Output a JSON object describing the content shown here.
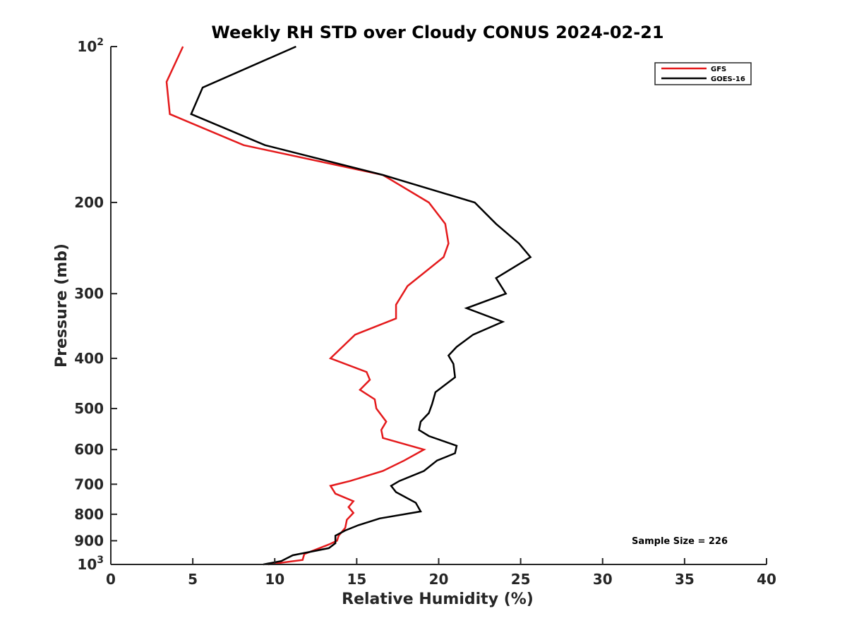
{
  "chart_data": {
    "type": "line",
    "title": "Weekly RH STD over Cloudy CONUS 2024-02-21",
    "xlabel": "Relative Humidity (%)",
    "ylabel": "Pressure (mb)",
    "xlim": [
      0,
      40
    ],
    "ylim": [
      100,
      1000
    ],
    "y_scale": "log",
    "y_reversed": true,
    "grid": false,
    "legend_position": "top-right",
    "x_ticks": [
      0,
      5,
      10,
      15,
      20,
      25,
      30,
      35,
      40
    ],
    "y_ticks": [
      {
        "value": 100,
        "base": "10",
        "exp": "2"
      },
      {
        "value": 200,
        "label": "200"
      },
      {
        "value": 300,
        "label": "300"
      },
      {
        "value": 400,
        "label": "400"
      },
      {
        "value": 500,
        "label": "500"
      },
      {
        "value": 600,
        "label": "600"
      },
      {
        "value": 700,
        "label": "700"
      },
      {
        "value": 800,
        "label": "800"
      },
      {
        "value": 900,
        "label": "900"
      },
      {
        "value": 1000,
        "base": "10",
        "exp": "3"
      }
    ],
    "annotation": "Sample Size = 226",
    "series": [
      {
        "name": "GFS",
        "color": "#e41a1c",
        "points": [
          [
            4.4,
            100
          ],
          [
            3.4,
            117
          ],
          [
            3.6,
            135
          ],
          [
            8.1,
            155
          ],
          [
            16.6,
            177
          ],
          [
            19.4,
            200
          ],
          [
            20.4,
            220
          ],
          [
            20.6,
            240
          ],
          [
            20.3,
            255
          ],
          [
            18.1,
            290
          ],
          [
            17.4,
            315
          ],
          [
            17.4,
            335
          ],
          [
            14.9,
            360
          ],
          [
            13.4,
            400
          ],
          [
            15.6,
            425
          ],
          [
            15.8,
            440
          ],
          [
            15.2,
            460
          ],
          [
            16.1,
            480
          ],
          [
            16.2,
            500
          ],
          [
            16.8,
            530
          ],
          [
            16.5,
            550
          ],
          [
            16.6,
            570
          ],
          [
            19.1,
            600
          ],
          [
            17.9,
            630
          ],
          [
            16.6,
            660
          ],
          [
            14.6,
            690
          ],
          [
            13.4,
            705
          ],
          [
            13.7,
            730
          ],
          [
            14.8,
            755
          ],
          [
            14.5,
            775
          ],
          [
            14.8,
            795
          ],
          [
            14.4,
            820
          ],
          [
            14.3,
            850
          ],
          [
            13.9,
            880
          ],
          [
            13.8,
            900
          ],
          [
            13.3,
            915
          ],
          [
            11.8,
            955
          ],
          [
            11.7,
            980
          ],
          [
            9.6,
            1000
          ]
        ]
      },
      {
        "name": "GOES-16",
        "color": "#000000",
        "points": [
          [
            11.3,
            100
          ],
          [
            5.6,
            120
          ],
          [
            4.9,
            135
          ],
          [
            9.4,
            155
          ],
          [
            16.6,
            177
          ],
          [
            22.2,
            200
          ],
          [
            23.5,
            220
          ],
          [
            24.9,
            240
          ],
          [
            25.6,
            255
          ],
          [
            23.5,
            280
          ],
          [
            24.1,
            300
          ],
          [
            21.7,
            320
          ],
          [
            23.9,
            340
          ],
          [
            22.1,
            360
          ],
          [
            21.1,
            380
          ],
          [
            20.6,
            395
          ],
          [
            20.9,
            410
          ],
          [
            21.0,
            435
          ],
          [
            19.8,
            465
          ],
          [
            19.6,
            490
          ],
          [
            19.4,
            510
          ],
          [
            18.9,
            530
          ],
          [
            18.8,
            550
          ],
          [
            19.4,
            565
          ],
          [
            21.1,
            590
          ],
          [
            21.0,
            610
          ],
          [
            19.9,
            630
          ],
          [
            19.1,
            660
          ],
          [
            17.6,
            690
          ],
          [
            17.1,
            705
          ],
          [
            17.4,
            725
          ],
          [
            18.6,
            760
          ],
          [
            18.9,
            790
          ],
          [
            16.4,
            815
          ],
          [
            15.1,
            840
          ],
          [
            14.3,
            860
          ],
          [
            13.7,
            880
          ],
          [
            13.7,
            910
          ],
          [
            13.3,
            930
          ],
          [
            11.1,
            960
          ],
          [
            10.4,
            985
          ],
          [
            9.3,
            1000
          ]
        ]
      }
    ]
  }
}
